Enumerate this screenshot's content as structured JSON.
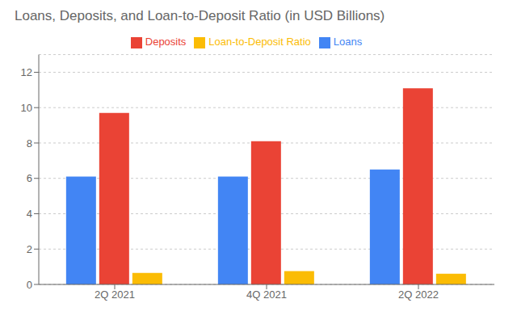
{
  "chart_data": {
    "type": "bar",
    "title": "Loans, Deposits, and Loan-to-Deposit Ratio (in USD Billions)",
    "categories": [
      "2Q 2021",
      "4Q 2021",
      "2Q 2022"
    ],
    "series": [
      {
        "name": "Loans",
        "color": "#4285F4",
        "values": [
          6.1,
          6.1,
          6.5
        ]
      },
      {
        "name": "Deposits",
        "color": "#EA4335",
        "values": [
          9.7,
          8.1,
          11.1
        ]
      },
      {
        "name": "Loan-to-Deposit Ratio",
        "color": "#FBBC04",
        "values": [
          0.65,
          0.75,
          0.6
        ]
      }
    ],
    "ylim": [
      0,
      13
    ],
    "yticks": [
      0,
      2,
      4,
      6,
      8,
      10,
      12
    ],
    "grid": true,
    "legend": "top"
  }
}
